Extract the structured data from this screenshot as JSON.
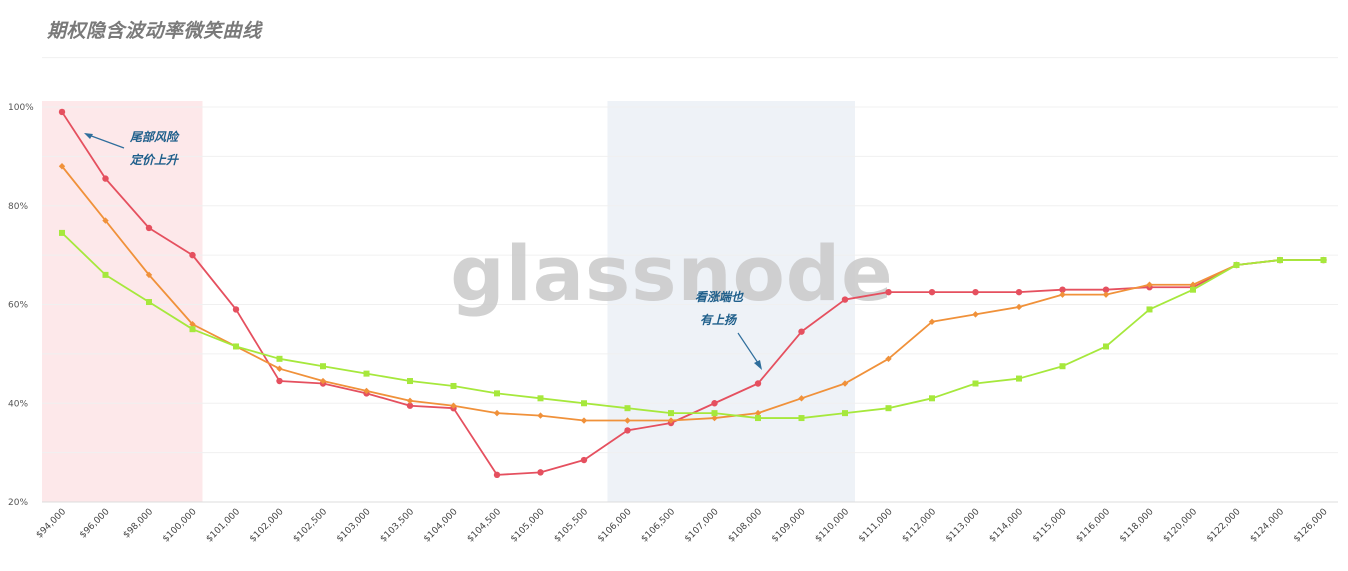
{
  "title": "期权隐含波动率微笑曲线",
  "watermark": "glassnode",
  "chart_data": {
    "type": "line",
    "title": "期权隐含波动率微笑曲线",
    "xlabel": "",
    "ylabel": "",
    "x": [
      "$94,000",
      "$96,000",
      "$98,000",
      "$100,000",
      "$101,000",
      "$102,000",
      "$102,500",
      "$103,000",
      "$103,500",
      "$104,000",
      "$104,500",
      "$105,000",
      "$105,500",
      "$106,000",
      "$106,500",
      "$107,000",
      "$108,000",
      "$109,000",
      "$110,000",
      "$111,000",
      "$112,000",
      "$113,000",
      "$114,000",
      "$115,000",
      "$116,000",
      "$118,000",
      "$120,000",
      "$122,000",
      "$124,000",
      "$126,000"
    ],
    "yticks": [
      "20%",
      "40%",
      "60%",
      "80%",
      "100%"
    ],
    "ylim": [
      20,
      100
    ],
    "grid": true,
    "series": [
      {
        "color": "#e5505f",
        "marker": "circle",
        "values": [
          99,
          85.5,
          75.5,
          70,
          59,
          44.5,
          44,
          42,
          39.5,
          39,
          25.5,
          26,
          28.5,
          34.5,
          36,
          40,
          44,
          54.5,
          61,
          62.5,
          62.5,
          62.5,
          62.5,
          63,
          63,
          63.5,
          63.5,
          68,
          69,
          69
        ]
      },
      {
        "color": "#f0913a",
        "marker": "diamond",
        "values": [
          88,
          77,
          66,
          56,
          51.5,
          47,
          44.5,
          42.5,
          40.5,
          39.5,
          38,
          37.5,
          36.5,
          36.5,
          36.5,
          37,
          38,
          41,
          44,
          49,
          56.5,
          58,
          59.5,
          62,
          62,
          64,
          64,
          68,
          69,
          69
        ]
      },
      {
        "color": "#a6e83c",
        "marker": "square",
        "values": [
          74.5,
          66,
          60.5,
          55,
          51.5,
          49,
          47.5,
          46,
          44.5,
          43.5,
          42,
          41,
          40,
          39,
          38,
          38,
          37,
          37,
          38,
          39,
          41,
          44,
          45,
          47.5,
          51.5,
          59,
          63,
          68,
          69,
          69
        ]
      }
    ],
    "highlights": [
      {
        "from": 0,
        "to": 3,
        "color": "#fde8ea"
      },
      {
        "from": 13,
        "to": 18,
        "color": "#eef2f7"
      }
    ],
    "annotations": [
      {
        "lines": [
          "尾部风险",
          "定价上升"
        ]
      },
      {
        "lines": [
          "看涨端也",
          "有上扬"
        ]
      }
    ]
  }
}
